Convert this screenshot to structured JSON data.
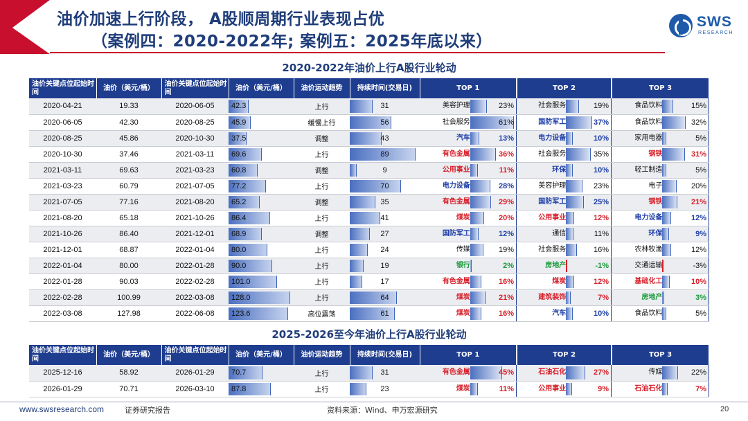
{
  "header": {
    "title_line1": "油价加速上行阶段， A股顺周期行业表现占优",
    "title_line2": "（案例四：2020-2022年; 案例五：2025年底以来）"
  },
  "logo": {
    "text": "SWS",
    "sub": "RESEARCH"
  },
  "colors": {
    "navy": "#1e3d8f",
    "red": "#d8202a",
    "blue": "#1f3fa8",
    "green": "#199a39",
    "banner_red": "#c8102e"
  },
  "section1": {
    "title": "2020-2022年油价上行A股行业轮动",
    "columns": [
      "油价关键点位起始时间",
      "油价（美元/桶）",
      "油价关键点位起始时间",
      "油价（美元/桶）",
      "油价运动趋势",
      "持续时间(交易日)",
      "TOP 1",
      "TOP 2",
      "TOP 3"
    ],
    "rows": [
      {
        "d1": "2020-04-21",
        "p1": "19.33",
        "d2": "2020-06-05",
        "p2": "42.3",
        "trend": "上行",
        "days": "31",
        "t1": {
          "name": "美容护理",
          "pct": "23%",
          "v": 23,
          "c": "black"
        },
        "t2": {
          "name": "社会服务",
          "pct": "19%",
          "v": 19,
          "c": "black"
        },
        "t3": {
          "name": "食品饮料",
          "pct": "15%",
          "v": 15,
          "c": "black"
        }
      },
      {
        "d1": "2020-06-05",
        "p1": "42.30",
        "d2": "2020-08-25",
        "p2": "45.9",
        "trend": "缓慢上行",
        "days": "56",
        "t1": {
          "name": "社会服务",
          "pct": "61%",
          "v": 61,
          "c": "black"
        },
        "t2": {
          "name": "国防军工",
          "pct": "37%",
          "v": 37,
          "c": "blue"
        },
        "t3": {
          "name": "食品饮料",
          "pct": "32%",
          "v": 32,
          "c": "black"
        }
      },
      {
        "d1": "2020-08-25",
        "p1": "45.86",
        "d2": "2020-10-30",
        "p2": "37.5",
        "trend": "调整",
        "days": "43",
        "t1": {
          "name": "汽车",
          "pct": "13%",
          "v": 13,
          "c": "blue"
        },
        "t2": {
          "name": "电力设备",
          "pct": "10%",
          "v": 10,
          "c": "blue"
        },
        "t3": {
          "name": "家用电器",
          "pct": "5%",
          "v": 5,
          "c": "black"
        }
      },
      {
        "d1": "2020-10-30",
        "p1": "37.46",
        "d2": "2021-03-11",
        "p2": "69.6",
        "trend": "上行",
        "days": "89",
        "t1": {
          "name": "有色金属",
          "pct": "36%",
          "v": 36,
          "c": "red"
        },
        "t2": {
          "name": "社会服务",
          "pct": "35%",
          "v": 35,
          "c": "black"
        },
        "t3": {
          "name": "钢铁",
          "pct": "31%",
          "v": 31,
          "c": "red"
        }
      },
      {
        "d1": "2021-03-11",
        "p1": "69.63",
        "d2": "2021-03-23",
        "p2": "60.8",
        "trend": "调整",
        "days": "9",
        "t1": {
          "name": "公用事业",
          "pct": "11%",
          "v": 11,
          "c": "red"
        },
        "t2": {
          "name": "环保",
          "pct": "10%",
          "v": 10,
          "c": "blue"
        },
        "t3": {
          "name": "轻工制造",
          "pct": "5%",
          "v": 5,
          "c": "black"
        }
      },
      {
        "d1": "2021-03-23",
        "p1": "60.79",
        "d2": "2021-07-05",
        "p2": "77.2",
        "trend": "上行",
        "days": "70",
        "t1": {
          "name": "电力设备",
          "pct": "28%",
          "v": 28,
          "c": "blue"
        },
        "t2": {
          "name": "美容护理",
          "pct": "23%",
          "v": 23,
          "c": "black"
        },
        "t3": {
          "name": "电子",
          "pct": "20%",
          "v": 20,
          "c": "black"
        }
      },
      {
        "d1": "2021-07-05",
        "p1": "77.16",
        "d2": "2021-08-20",
        "p2": "65.2",
        "trend": "调整",
        "days": "35",
        "t1": {
          "name": "有色金属",
          "pct": "29%",
          "v": 29,
          "c": "red"
        },
        "t2": {
          "name": "国防军工",
          "pct": "25%",
          "v": 25,
          "c": "blue"
        },
        "t3": {
          "name": "钢铁",
          "pct": "21%",
          "v": 21,
          "c": "red"
        }
      },
      {
        "d1": "2021-08-20",
        "p1": "65.18",
        "d2": "2021-10-26",
        "p2": "86.4",
        "trend": "上行",
        "days": "41",
        "t1": {
          "name": "煤炭",
          "pct": "20%",
          "v": 20,
          "c": "red"
        },
        "t2": {
          "name": "公用事业",
          "pct": "12%",
          "v": 12,
          "c": "red"
        },
        "t3": {
          "name": "电力设备",
          "pct": "12%",
          "v": 12,
          "c": "blue"
        }
      },
      {
        "d1": "2021-10-26",
        "p1": "86.40",
        "d2": "2021-12-01",
        "p2": "68.9",
        "trend": "调整",
        "days": "27",
        "t1": {
          "name": "国防军工",
          "pct": "12%",
          "v": 12,
          "c": "blue"
        },
        "t2": {
          "name": "通信",
          "pct": "11%",
          "v": 11,
          "c": "black"
        },
        "t3": {
          "name": "环保",
          "pct": "9%",
          "v": 9,
          "c": "blue"
        }
      },
      {
        "d1": "2021-12-01",
        "p1": "68.87",
        "d2": "2022-01-04",
        "p2": "80.0",
        "trend": "上行",
        "days": "24",
        "t1": {
          "name": "传媒",
          "pct": "19%",
          "v": 19,
          "c": "black"
        },
        "t2": {
          "name": "社会服务",
          "pct": "16%",
          "v": 16,
          "c": "black"
        },
        "t3": {
          "name": "农林牧渔",
          "pct": "12%",
          "v": 12,
          "c": "black"
        }
      },
      {
        "d1": "2022-01-04",
        "p1": "80.00",
        "d2": "2022-01-28",
        "p2": "90.0",
        "trend": "上行",
        "days": "19",
        "t1": {
          "name": "银行",
          "pct": "2%",
          "v": 2,
          "c": "green"
        },
        "t2": {
          "name": "房地产",
          "pct": "-1%",
          "v": -1,
          "c": "green"
        },
        "t3": {
          "name": "交通运输",
          "pct": "-3%",
          "v": -3,
          "c": "black"
        }
      },
      {
        "d1": "2022-01-28",
        "p1": "90.03",
        "d2": "2022-02-28",
        "p2": "101.0",
        "trend": "上行",
        "days": "17",
        "t1": {
          "name": "有色金属",
          "pct": "16%",
          "v": 16,
          "c": "red"
        },
        "t2": {
          "name": "煤炭",
          "pct": "12%",
          "v": 12,
          "c": "red"
        },
        "t3": {
          "name": "基础化工",
          "pct": "10%",
          "v": 10,
          "c": "red"
        }
      },
      {
        "d1": "2022-02-28",
        "p1": "100.99",
        "d2": "2022-03-08",
        "p2": "128.0",
        "trend": "上行",
        "days": "64",
        "t1": {
          "name": "煤炭",
          "pct": "21%",
          "v": 21,
          "c": "red"
        },
        "t2": {
          "name": "建筑装饰",
          "pct": "7%",
          "v": 7,
          "c": "red"
        },
        "t3": {
          "name": "房地产",
          "pct": "3%",
          "v": 3,
          "c": "green"
        }
      },
      {
        "d1": "2022-03-08",
        "p1": "127.98",
        "d2": "2022-06-08",
        "p2": "123.6",
        "trend": "高位震荡",
        "days": "61",
        "t1": {
          "name": "煤炭",
          "pct": "16%",
          "v": 16,
          "c": "red"
        },
        "t2": {
          "name": "汽车",
          "pct": "10%",
          "v": 10,
          "c": "blue"
        },
        "t3": {
          "name": "食品饮料",
          "pct": "5%",
          "v": 5,
          "c": "black"
        }
      }
    ]
  },
  "section2": {
    "title": "2025-2026至今年油价上行A股行业轮动",
    "columns": [
      "油价关键点位起始时间",
      "油价（美元/桶）",
      "油价关键点位起始时间",
      "油价（美元/桶）",
      "油价运动趋势",
      "持续时间(交易日)",
      "TOP 1",
      "TOP 2",
      "TOP 3"
    ],
    "rows": [
      {
        "d1": "2025-12-16",
        "p1": "58.92",
        "d2": "2026-01-29",
        "p2": "70.7",
        "trend": "上行",
        "days": "31",
        "t1": {
          "name": "有色金属",
          "pct": "45%",
          "v": 45,
          "c": "red"
        },
        "t2": {
          "name": "石油石化",
          "pct": "27%",
          "v": 27,
          "c": "red"
        },
        "t3": {
          "name": "传媒",
          "pct": "22%",
          "v": 22,
          "c": "black"
        }
      },
      {
        "d1": "2026-01-29",
        "p1": "70.71",
        "d2": "2026-03-10",
        "p2": "87.8",
        "trend": "上行",
        "days": "23",
        "t1": {
          "name": "煤炭",
          "pct": "11%",
          "v": 11,
          "c": "red"
        },
        "t2": {
          "name": "公用事业",
          "pct": "9%",
          "v": 9,
          "c": "red"
        },
        "t3": {
          "name": "石油石化",
          "pct": "7%",
          "v": 7,
          "c": "red"
        }
      }
    ]
  },
  "footer": {
    "site": "www.swsresearch.com",
    "report": "证券研究报告",
    "source": "资料来源：Wind、申万宏源研究",
    "page": "20"
  }
}
